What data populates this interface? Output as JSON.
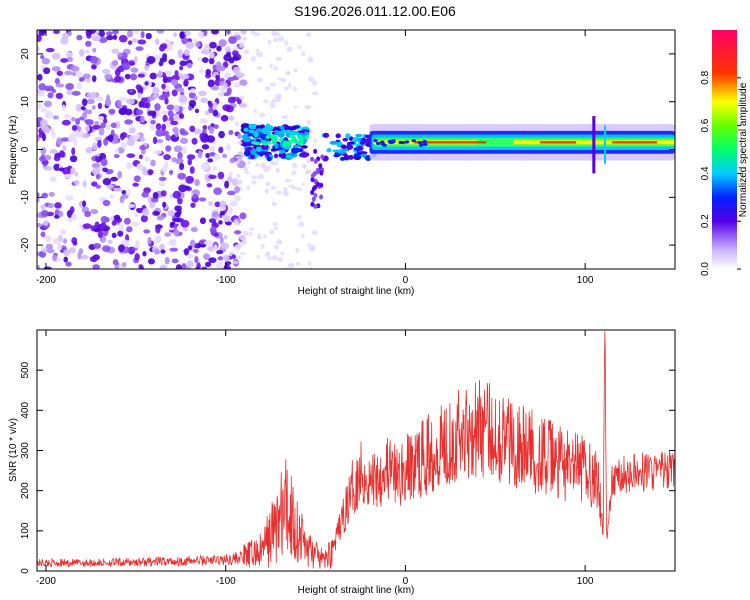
{
  "chart_data": [
    {
      "type": "heatmap",
      "title": "S196.2026.011.12.00.E06",
      "xlabel": "Height of straight line (km)",
      "ylabel": "Frequency (Hz)",
      "xlim": [
        -205,
        150
      ],
      "ylim": [
        -25,
        25
      ],
      "x_ticks": [
        -200,
        -100,
        0,
        100
      ],
      "x_tick_labels": [
        "-200",
        "-100",
        "0",
        "100"
      ],
      "y_ticks": [
        -20,
        -10,
        0,
        10,
        20
      ],
      "y_tick_labels": [
        "-20",
        "-10",
        "0",
        "10",
        "20"
      ],
      "colorbar": {
        "label": "Normalized spectral amplitude",
        "range": [
          0.0,
          1.0
        ],
        "ticks": [
          0.0,
          0.2,
          0.4,
          0.6,
          0.8
        ],
        "tick_labels": [
          "0.0",
          "0.2",
          "0.4",
          "0.6",
          "0.8"
        ]
      },
      "regions": [
        {
          "name": "noise",
          "x_range": [
            -205,
            -90
          ],
          "freq_range": [
            -25,
            25
          ],
          "amplitude": 0.1
        },
        {
          "name": "transition-cluster",
          "x_range": [
            -90,
            -55
          ],
          "freq_range": [
            -2,
            5
          ],
          "amplitude": 0.4
        },
        {
          "name": "spike-below",
          "x_range": [
            -52,
            -46
          ],
          "freq_range": [
            -12,
            0
          ],
          "amplitude": 0.2
        },
        {
          "name": "signal-band",
          "x_range": [
            -20,
            150
          ],
          "freq_center": 1.5,
          "freq_halfwidth": 2,
          "amplitude": 0.85
        }
      ]
    },
    {
      "type": "line",
      "xlabel": "Height of straight line (km)",
      "ylabel": "SNR (10 * v/v)",
      "xlim": [
        -205,
        150
      ],
      "ylim": [
        0,
        600
      ],
      "x_ticks": [
        -200,
        -100,
        0,
        100
      ],
      "x_tick_labels": [
        "-200",
        "-100",
        "0",
        "100"
      ],
      "y_ticks": [
        0,
        100,
        200,
        300,
        400,
        500
      ],
      "y_tick_labels": [
        "0",
        "100",
        "200",
        "300",
        "400",
        "500"
      ],
      "series": [
        {
          "name": "SNR",
          "color": "#e8312f",
          "x": [
            -205,
            -180,
            -150,
            -120,
            -100,
            -90,
            -80,
            -75,
            -70,
            -65,
            -60,
            -55,
            -50,
            -45,
            -40,
            -35,
            -30,
            -25,
            -20,
            -15,
            -10,
            -5,
            0,
            10,
            20,
            30,
            40,
            50,
            60,
            70,
            80,
            90,
            100,
            105,
            108,
            110,
            111,
            112,
            115,
            120,
            130,
            140,
            150
          ],
          "y": [
            20,
            20,
            22,
            25,
            28,
            35,
            50,
            90,
            130,
            160,
            100,
            60,
            40,
            25,
            60,
            130,
            200,
            250,
            220,
            240,
            260,
            230,
            250,
            280,
            320,
            340,
            360,
            345,
            320,
            300,
            280,
            260,
            250,
            240,
            200,
            70,
            600,
            80,
            220,
            240,
            245,
            250,
            250
          ]
        }
      ]
    }
  ]
}
